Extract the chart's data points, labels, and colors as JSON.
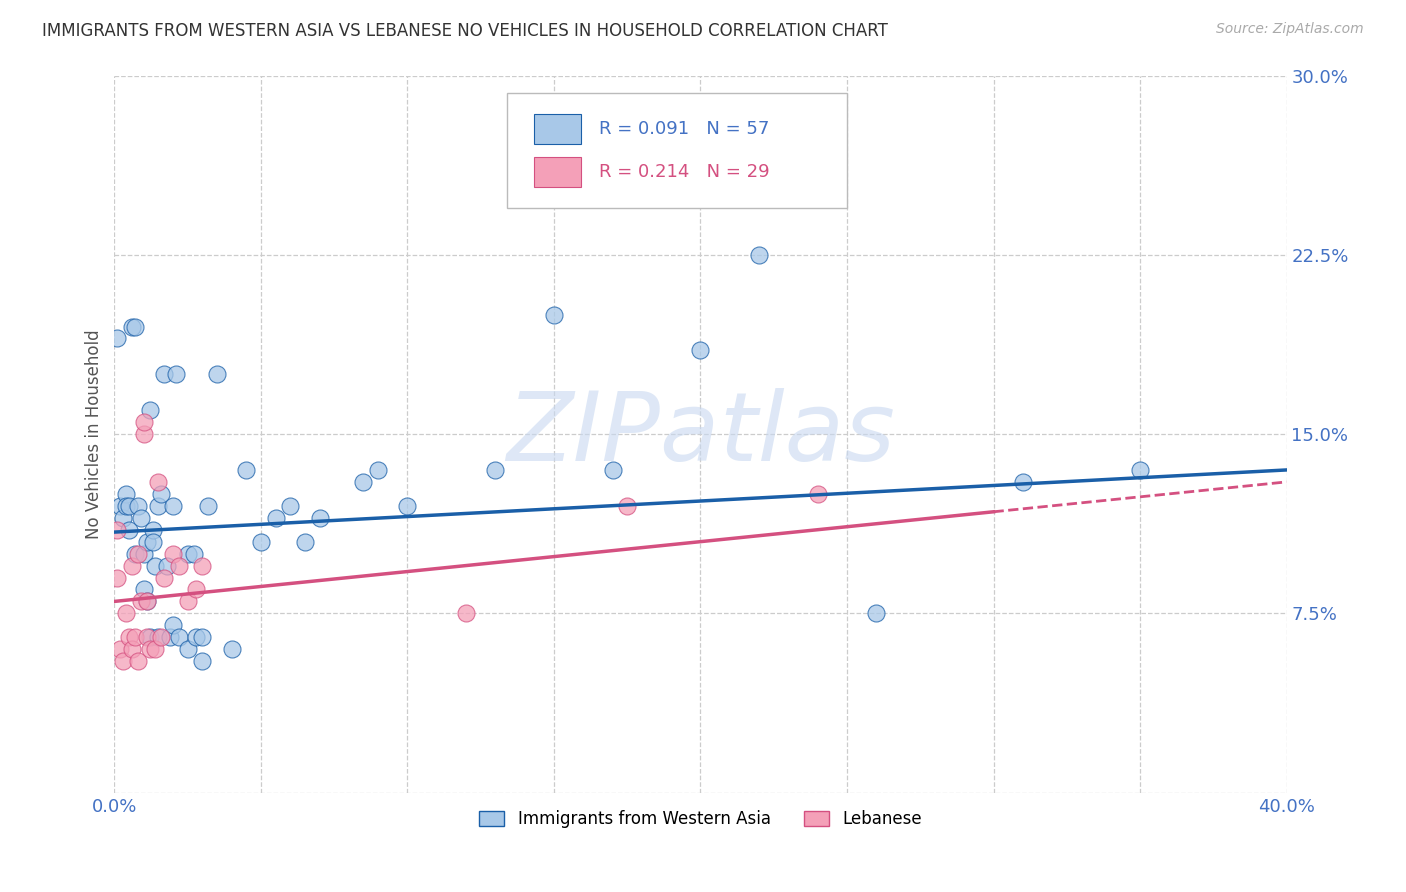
{
  "title": "IMMIGRANTS FROM WESTERN ASIA VS LEBANESE NO VEHICLES IN HOUSEHOLD CORRELATION CHART",
  "source": "Source: ZipAtlas.com",
  "ylabel": "No Vehicles in Household",
  "legend_label_blue": "Immigrants from Western Asia",
  "legend_label_pink": "Lebanese",
  "r_blue": 0.091,
  "n_blue": 57,
  "r_pink": 0.214,
  "n_pink": 29,
  "color_blue": "#a8c8e8",
  "color_pink": "#f4a0b8",
  "color_line_blue": "#1a5fa8",
  "color_line_pink": "#d45080",
  "color_axis": "#4472c4",
  "xlim": [
    0.0,
    0.4
  ],
  "ylim": [
    0.0,
    0.3
  ],
  "xticks": [
    0.0,
    0.05,
    0.1,
    0.15,
    0.2,
    0.25,
    0.3,
    0.35,
    0.4
  ],
  "yticks": [
    0.0,
    0.075,
    0.15,
    0.225,
    0.3
  ],
  "blue_x": [
    0.001,
    0.002,
    0.003,
    0.004,
    0.004,
    0.005,
    0.005,
    0.006,
    0.007,
    0.007,
    0.008,
    0.009,
    0.01,
    0.01,
    0.011,
    0.011,
    0.012,
    0.012,
    0.013,
    0.013,
    0.014,
    0.015,
    0.015,
    0.016,
    0.017,
    0.018,
    0.019,
    0.02,
    0.02,
    0.021,
    0.022,
    0.025,
    0.025,
    0.027,
    0.028,
    0.03,
    0.03,
    0.032,
    0.035,
    0.04,
    0.045,
    0.05,
    0.055,
    0.06,
    0.065,
    0.07,
    0.085,
    0.09,
    0.1,
    0.13,
    0.15,
    0.17,
    0.2,
    0.22,
    0.26,
    0.31,
    0.35
  ],
  "blue_y": [
    0.19,
    0.12,
    0.115,
    0.125,
    0.12,
    0.11,
    0.12,
    0.195,
    0.195,
    0.1,
    0.12,
    0.115,
    0.1,
    0.085,
    0.105,
    0.08,
    0.16,
    0.065,
    0.11,
    0.105,
    0.095,
    0.12,
    0.065,
    0.125,
    0.175,
    0.095,
    0.065,
    0.12,
    0.07,
    0.175,
    0.065,
    0.1,
    0.06,
    0.1,
    0.065,
    0.065,
    0.055,
    0.12,
    0.175,
    0.06,
    0.135,
    0.105,
    0.115,
    0.12,
    0.105,
    0.115,
    0.13,
    0.135,
    0.12,
    0.135,
    0.2,
    0.135,
    0.185,
    0.225,
    0.075,
    0.13,
    0.135
  ],
  "pink_x": [
    0.001,
    0.001,
    0.002,
    0.003,
    0.004,
    0.005,
    0.006,
    0.006,
    0.007,
    0.008,
    0.008,
    0.009,
    0.01,
    0.01,
    0.011,
    0.011,
    0.012,
    0.014,
    0.015,
    0.016,
    0.017,
    0.02,
    0.022,
    0.025,
    0.028,
    0.03,
    0.12,
    0.175,
    0.24
  ],
  "pink_y": [
    0.11,
    0.09,
    0.06,
    0.055,
    0.075,
    0.065,
    0.06,
    0.095,
    0.065,
    0.1,
    0.055,
    0.08,
    0.15,
    0.155,
    0.08,
    0.065,
    0.06,
    0.06,
    0.13,
    0.065,
    0.09,
    0.1,
    0.095,
    0.08,
    0.085,
    0.095,
    0.075,
    0.12,
    0.125
  ],
  "trend_blue_start": 0.109,
  "trend_blue_end": 0.135,
  "trend_pink_start": 0.08,
  "trend_pink_end": 0.13,
  "watermark": "ZIPatlas",
  "watermark_color": "#c8d8f0",
  "background": "#ffffff"
}
